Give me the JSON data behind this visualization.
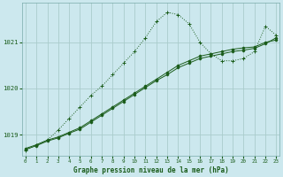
{
  "xlabel": "Graphe pression niveau de la mer (hPa)",
  "bg_color": "#cce8ee",
  "grid_color": "#aacccc",
  "line_color": "#1a5c1a",
  "x_ticks": [
    0,
    1,
    2,
    3,
    4,
    5,
    6,
    7,
    8,
    9,
    10,
    11,
    12,
    13,
    14,
    15,
    16,
    17,
    18,
    19,
    20,
    21,
    22,
    23
  ],
  "y_ticks": [
    1019,
    1020,
    1021
  ],
  "ylim": [
    1018.55,
    1021.85
  ],
  "xlim": [
    -0.3,
    23.3
  ],
  "series_dotted": {
    "x": [
      0,
      1,
      2,
      3,
      4,
      5,
      6,
      7,
      8,
      9,
      10,
      11,
      12,
      13,
      14,
      15,
      16,
      17,
      18,
      19,
      20,
      21,
      22,
      23
    ],
    "y": [
      1018.65,
      1018.78,
      1018.88,
      1019.1,
      1019.35,
      1019.6,
      1019.85,
      1020.05,
      1020.3,
      1020.55,
      1020.8,
      1021.1,
      1021.45,
      1021.65,
      1021.6,
      1021.4,
      1021.0,
      1020.75,
      1020.6,
      1020.6,
      1020.65,
      1020.8,
      1021.35,
      1021.15
    ]
  },
  "series_solid1": {
    "x": [
      0,
      1,
      2,
      3,
      4,
      5,
      6,
      7,
      8,
      9,
      10,
      11,
      12,
      13,
      14,
      15,
      16,
      17,
      18,
      19,
      20,
      21,
      22,
      23
    ],
    "y": [
      1018.7,
      1018.78,
      1018.88,
      1018.95,
      1019.05,
      1019.15,
      1019.3,
      1019.45,
      1019.6,
      1019.75,
      1019.9,
      1020.05,
      1020.2,
      1020.35,
      1020.5,
      1020.6,
      1020.7,
      1020.75,
      1020.8,
      1020.85,
      1020.88,
      1020.9,
      1021.0,
      1021.05
    ]
  },
  "series_solid2": {
    "x": [
      0,
      1,
      2,
      3,
      4,
      5,
      6,
      7,
      8,
      9,
      10,
      11,
      12,
      13,
      14,
      15,
      16,
      17,
      18,
      19,
      20,
      21,
      22,
      23
    ],
    "y": [
      1018.68,
      1018.76,
      1018.86,
      1018.93,
      1019.03,
      1019.12,
      1019.27,
      1019.42,
      1019.57,
      1019.72,
      1019.87,
      1020.02,
      1020.17,
      1020.3,
      1020.45,
      1020.55,
      1020.65,
      1020.7,
      1020.75,
      1020.8,
      1020.83,
      1020.87,
      1020.97,
      1021.1
    ]
  }
}
